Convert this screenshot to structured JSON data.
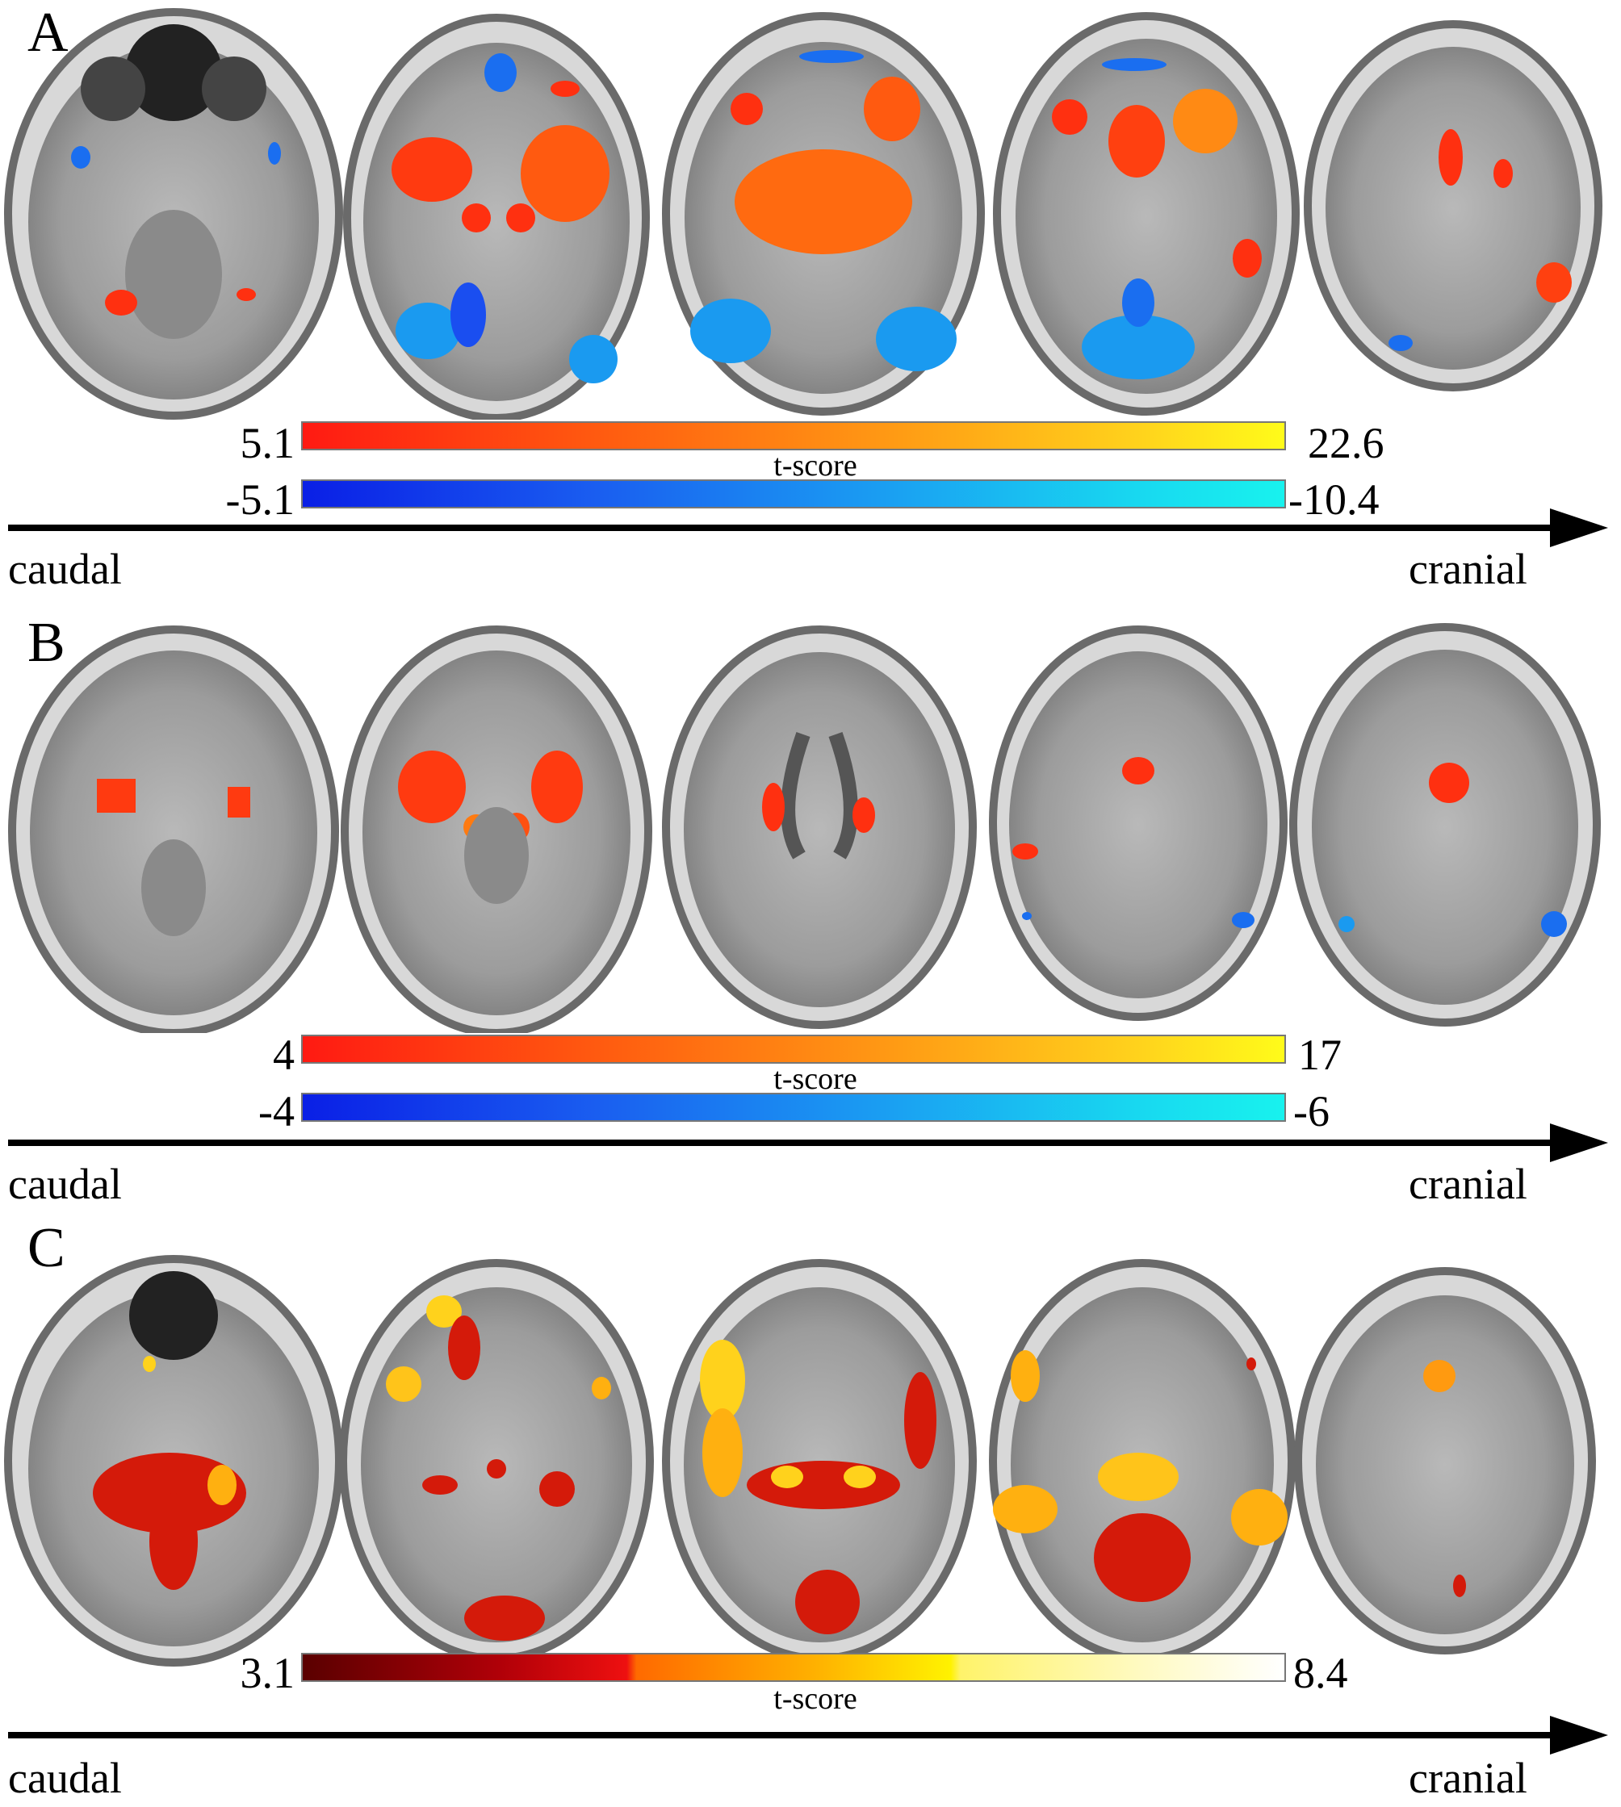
{
  "figure": {
    "panels": [
      {
        "letter": "A",
        "colorbars": {
          "positive": {
            "min_label": "5.1",
            "max_label": "22.6"
          },
          "negative": {
            "min_label": "-5.1",
            "max_label": "-10.4"
          },
          "title": "t-score"
        },
        "axis": {
          "left_label": "caudal",
          "right_label": "cranial"
        }
      },
      {
        "letter": "B",
        "colorbars": {
          "positive": {
            "min_label": "4",
            "max_label": "17"
          },
          "negative": {
            "min_label": "-4",
            "max_label": "-6"
          },
          "title": "t-score"
        },
        "axis": {
          "left_label": "caudal",
          "right_label": "cranial"
        }
      },
      {
        "letter": "C",
        "colorbars": {
          "positive": {
            "min_label": "3.1",
            "max_label": "8.4"
          },
          "title": "t-score"
        },
        "axis": {
          "left_label": "caudal",
          "right_label": "cranial"
        }
      }
    ],
    "colors": {
      "activation_warm": "#ff3a10",
      "activation_hot": "#ffd21c",
      "deactivation_cool": "#1a6ef0",
      "brain_gray": "#9a9a9a",
      "skull_gray": "#c8c8c8"
    }
  }
}
